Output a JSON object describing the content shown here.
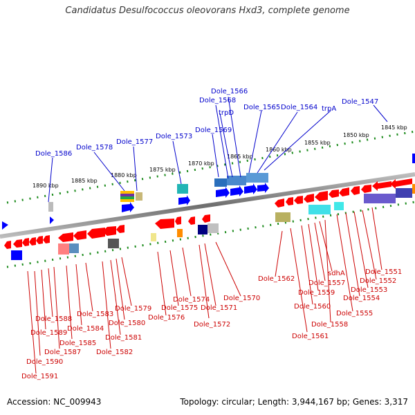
{
  "title": "Candidatus Desulfococcus oleovorans Hxd3, complete genome",
  "accession": "Accession: NC_009943",
  "summary": "Topology: circular; Length: 3,944,167 bp; Genes: 3,317",
  "colors": {
    "forward": "#0000ff",
    "reverse": "#ff0000",
    "backbone": "#808080",
    "ticks": "#1a8a1a",
    "top_label": "#0000cc",
    "bottom_label": "#cc0000"
  },
  "scale_labels": [
    "1845 kbp",
    "1850 kbp",
    "1855 kbp",
    "1860 kbp",
    "1865 kbp",
    "1870 kbp",
    "1875 kbp",
    "1880 kbp",
    "1885 kbp",
    "1890 kbp"
  ],
  "top_genes": [
    "Dole_1566",
    "Dole_1568",
    "trpD",
    "Dole_1565",
    "Dole_1564",
    "trpA",
    "Dole_1547",
    "Dole_1569",
    "Dole_1573",
    "Dole_1577",
    "Dole_1578",
    "Dole_1586"
  ],
  "bottom_genes": [
    "Dole_1551",
    "Dole_1552",
    "Dole_1553",
    "Dole_1554",
    "Dole_1555",
    "Dole_1558",
    "sdhA",
    "Dole_1557",
    "Dole_1559",
    "Dole_1560",
    "Dole_1561",
    "Dole_1562",
    "Dole_1570",
    "Dole_1571",
    "Dole_1572",
    "Dole_1574",
    "Dole_1575",
    "Dole_1576",
    "Dole_1579",
    "Dole_1580",
    "Dole_1581",
    "Dole_1582",
    "Dole_1583",
    "Dole_1584",
    "Dole_1585",
    "Dole_1587",
    "Dole_1588",
    "Dole_1589",
    "Dole_1590",
    "Dole_1591"
  ]
}
